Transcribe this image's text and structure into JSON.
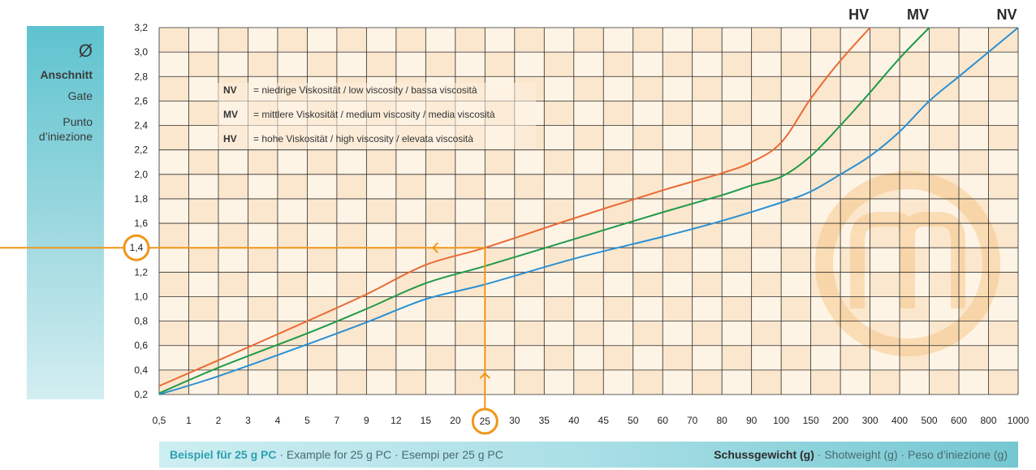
{
  "y_panel": {
    "symbol": "Ø",
    "label_de": "Anschnitt",
    "label_en": "Gate",
    "label_it_1": "Punto",
    "label_it_2": "d’iniezione"
  },
  "legend": [
    {
      "code": "NV",
      "text": "= niedrige Viskosität / low viscosity / bassa viscosità"
    },
    {
      "code": "MV",
      "text": "= mittlere Viskosität / medium viscosity / media viscosità"
    },
    {
      "code": "HV",
      "text": "= hohe Viskosität / high viscosity / elevata viscosità"
    }
  ],
  "bottom": {
    "example_bold": "Beispiel für 25 g PC",
    "example_rest": " · Example for 25 g PC · Esempi per 25 g PC",
    "xlabel_bold": "Schussgewicht (g)",
    "xlabel_rest": " · Shotweight (g) · Peso d’iniezione (g)"
  },
  "colors": {
    "HV": "#ea6a35",
    "MV": "#1f9a48",
    "NV": "#2a8fd3",
    "highlight": "#f0961a",
    "cell_a": "#fbe7cd",
    "cell_b": "#fef4e6"
  },
  "chart_data": {
    "type": "line",
    "x": [
      "0,5",
      "1",
      "2",
      "3",
      "4",
      "5",
      "7",
      "9",
      "12",
      "15",
      "20",
      "25",
      "30",
      "35",
      "40",
      "45",
      "50",
      "60",
      "70",
      "80",
      "90",
      "100",
      "150",
      "200",
      "300",
      "400",
      "500",
      "600",
      "800",
      "1000"
    ],
    "y_ticks": [
      "0,2",
      "0,4",
      "0,6",
      "0,8",
      "1,0",
      "1,2",
      "1,4",
      "1,6",
      "1,8",
      "2,0",
      "2,2",
      "2,4",
      "2,6",
      "2,8",
      "3,0",
      "3,2"
    ],
    "ylim": [
      0.2,
      3.2
    ],
    "xlabel": "Schussgewicht (g) · Shotweight (g) · Peso d’iniezione (g)",
    "ylabel": "Ø Anschnitt Gate Punto d’iniezione",
    "grid": true,
    "series": [
      {
        "name": "HV",
        "x": [
          "0,5",
          "2",
          "5",
          "9",
          "15",
          "25",
          "40",
          "60",
          "80",
          "90",
          "100",
          "150",
          "200",
          "300"
        ],
        "values": [
          0.27,
          0.48,
          0.8,
          1.02,
          1.26,
          1.4,
          1.64,
          1.87,
          2.01,
          2.1,
          2.26,
          2.62,
          2.93,
          3.2
        ]
      },
      {
        "name": "MV",
        "x": [
          "0,5",
          "2",
          "5",
          "9",
          "15",
          "25",
          "40",
          "60",
          "80",
          "90",
          "100",
          "150",
          "200",
          "300",
          "400",
          "500"
        ],
        "values": [
          0.21,
          0.42,
          0.7,
          0.9,
          1.11,
          1.25,
          1.47,
          1.69,
          1.83,
          1.91,
          1.98,
          2.15,
          2.4,
          2.67,
          2.95,
          3.2
        ]
      },
      {
        "name": "NV",
        "x": [
          "0,5",
          "2",
          "5",
          "9",
          "15",
          "25",
          "40",
          "60",
          "80",
          "100",
          "150",
          "200",
          "300",
          "400",
          "500",
          "600",
          "800",
          "1000"
        ],
        "values": [
          0.2,
          0.35,
          0.61,
          0.79,
          0.98,
          1.1,
          1.31,
          1.49,
          1.62,
          1.77,
          1.86,
          2.0,
          2.15,
          2.35,
          2.6,
          2.8,
          3.0,
          3.2
        ]
      }
    ],
    "example": {
      "x": "25",
      "y": 1.4,
      "x_label": "25",
      "y_label": "1,4"
    }
  }
}
